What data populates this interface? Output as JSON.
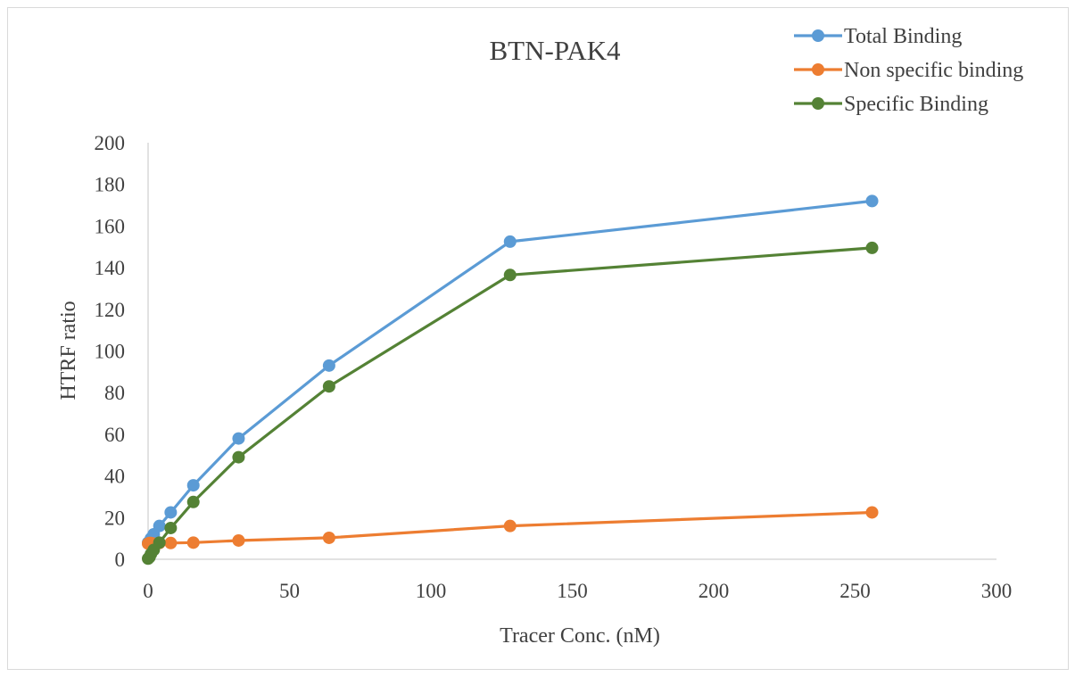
{
  "chart_data": {
    "type": "line",
    "title": "BTN-PAK4",
    "xlabel": "Tracer Conc. (nM)",
    "ylabel": "HTRF ratio",
    "xlim": [
      0,
      300
    ],
    "ylim": [
      0,
      200
    ],
    "xticks": [
      0,
      50,
      100,
      150,
      200,
      250,
      300
    ],
    "yticks": [
      0,
      20,
      40,
      60,
      80,
      100,
      120,
      140,
      160,
      180,
      200
    ],
    "grid": false,
    "legend_position": "top-right",
    "series": [
      {
        "name": "Total Binding",
        "color": "#5b9bd5",
        "x": [
          0,
          0.5,
          1,
          2,
          4,
          8,
          16,
          32,
          64,
          128,
          256
        ],
        "y": [
          8,
          8.5,
          10,
          12,
          16,
          22.5,
          35.5,
          58,
          93,
          152.5,
          172
        ]
      },
      {
        "name": "Non specific binding",
        "color": "#ed7d31",
        "x": [
          0,
          0.5,
          1,
          2,
          4,
          8,
          16,
          32,
          64,
          128,
          256
        ],
        "y": [
          7.5,
          7.8,
          7.8,
          7.5,
          7.8,
          7.8,
          8,
          9,
          10.3,
          16,
          22.5
        ]
      },
      {
        "name": "Specific Binding",
        "color": "#548235",
        "x": [
          0,
          0.5,
          1,
          2,
          4,
          8,
          16,
          32,
          64,
          128,
          256
        ],
        "y": [
          0.3,
          1,
          2.5,
          4.5,
          8,
          15,
          27.5,
          49,
          83,
          136.5,
          149.5
        ]
      }
    ]
  }
}
